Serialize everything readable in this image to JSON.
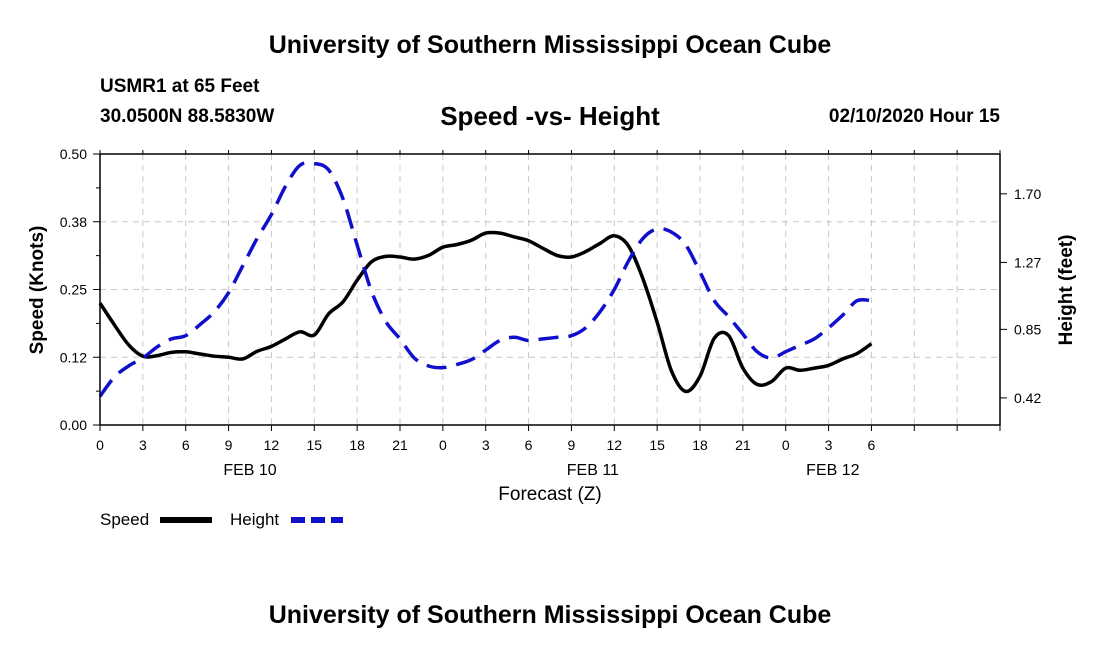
{
  "header": {
    "title": "University of Southern Mississippi Ocean Cube",
    "station": "USMR1 at 65 Feet",
    "location": "30.0500N 88.5830W",
    "subtitle": "Speed -vs- Height",
    "datetime": "02/10/2020 Hour 15"
  },
  "footer": {
    "title": "University of Southern Mississippi Ocean Cube"
  },
  "chart_data": {
    "type": "line",
    "title": "Speed -vs- Height",
    "xlabel": "Forecast (Z)",
    "ylabel": "Speed (Knots)",
    "y2label": "Height (feet)",
    "x_range": [
      0,
      63
    ],
    "ylim": [
      0,
      0.5
    ],
    "y2lim": [
      0.25,
      1.95
    ],
    "x_ticks": [
      0,
      3,
      6,
      9,
      12,
      15,
      18,
      21,
      24,
      27,
      30,
      33,
      36,
      39,
      42,
      45,
      48,
      51,
      54,
      57,
      60,
      63
    ],
    "x_tick_labels": [
      "0",
      "3",
      "6",
      "9",
      "12",
      "15",
      "18",
      "21",
      "0",
      "3",
      "6",
      "9",
      "12",
      "15",
      "18",
      "21",
      "0",
      "3",
      "6"
    ],
    "x_tick_label_hours": [
      0,
      3,
      6,
      9,
      12,
      15,
      18,
      21,
      24,
      27,
      30,
      33,
      36,
      39,
      42,
      45,
      48,
      51,
      54
    ],
    "date_labels": [
      {
        "hour": 10.5,
        "label": "FEB 10"
      },
      {
        "hour": 34.5,
        "label": "FEB 11"
      },
      {
        "hour": 51.3,
        "label": "FEB 12"
      }
    ],
    "y_ticks": [
      0.0,
      0.125,
      0.25,
      0.375,
      0.5
    ],
    "y_tick_labels": [
      "0.00",
      "0.12",
      "0.25",
      "0.38",
      "0.50"
    ],
    "y2_ticks": [
      0.42,
      0.85,
      1.27,
      1.7
    ],
    "y2_tick_labels": [
      "0.42",
      "0.85",
      "1.27",
      "1.70"
    ],
    "legend": "bottom-left",
    "grid": true,
    "series": [
      {
        "name": "Speed",
        "axis": "left",
        "color": "#000000",
        "style": "solid",
        "x": [
          0,
          1,
          2,
          3,
          4,
          5,
          6,
          7,
          8,
          9,
          10,
          11,
          12,
          13,
          14,
          15,
          16,
          17,
          18,
          19,
          20,
          21,
          22,
          23,
          24,
          25,
          26,
          27,
          28,
          29,
          30,
          31,
          32,
          33,
          34,
          35,
          36,
          37,
          38,
          39,
          40,
          41,
          42,
          43,
          44,
          45,
          46,
          47,
          48,
          49,
          50,
          51,
          52,
          53,
          54
        ],
        "values": [
          0.225,
          0.185,
          0.148,
          0.127,
          0.128,
          0.134,
          0.135,
          0.131,
          0.127,
          0.125,
          0.122,
          0.136,
          0.145,
          0.159,
          0.172,
          0.166,
          0.205,
          0.227,
          0.267,
          0.301,
          0.311,
          0.31,
          0.306,
          0.313,
          0.328,
          0.333,
          0.341,
          0.354,
          0.354,
          0.347,
          0.34,
          0.326,
          0.313,
          0.31,
          0.32,
          0.335,
          0.349,
          0.33,
          0.27,
          0.19,
          0.1,
          0.062,
          0.09,
          0.16,
          0.165,
          0.105,
          0.075,
          0.08,
          0.105,
          0.101,
          0.105,
          0.11,
          0.122,
          0.132,
          0.15
        ]
      },
      {
        "name": "Height",
        "axis": "right",
        "color": "#1010cc",
        "style": "dashed",
        "x": [
          0,
          1,
          2,
          3,
          4,
          5,
          6,
          7,
          8,
          9,
          10,
          11,
          12,
          13,
          14,
          15,
          16,
          17,
          18,
          19,
          20,
          21,
          22,
          23,
          24,
          25,
          26,
          27,
          28,
          29,
          30,
          31,
          32,
          33,
          34,
          35,
          36,
          37,
          38,
          39,
          40,
          41,
          42,
          43,
          44,
          45,
          46,
          47,
          48,
          49,
          50,
          51,
          52,
          53,
          54
        ],
        "values": [
          0.43,
          0.55,
          0.62,
          0.67,
          0.74,
          0.79,
          0.81,
          0.88,
          0.96,
          1.08,
          1.25,
          1.42,
          1.57,
          1.75,
          1.88,
          1.89,
          1.85,
          1.67,
          1.38,
          1.09,
          0.9,
          0.79,
          0.67,
          0.62,
          0.61,
          0.63,
          0.66,
          0.72,
          0.78,
          0.8,
          0.78,
          0.79,
          0.8,
          0.81,
          0.86,
          0.96,
          1.1,
          1.28,
          1.42,
          1.48,
          1.46,
          1.38,
          1.21,
          1.03,
          0.93,
          0.82,
          0.71,
          0.67,
          0.71,
          0.75,
          0.79,
          0.86,
          0.94,
          1.03,
          1.03
        ]
      }
    ]
  }
}
